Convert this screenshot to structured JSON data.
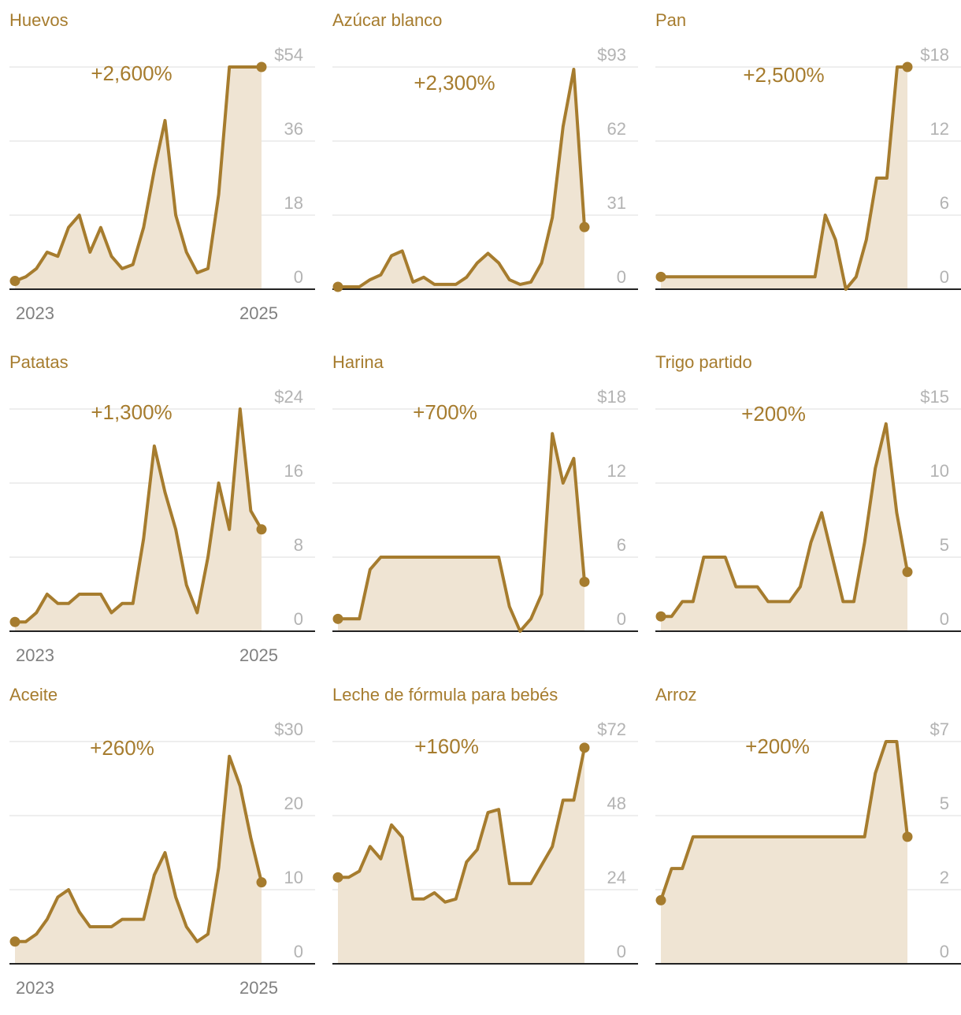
{
  "colors": {
    "accent": "#a67c2e",
    "area": "#efe4d3",
    "grid": "#dcdcdc",
    "axis": "#222222",
    "tick": "#b3b3b3",
    "xtick": "#808080"
  },
  "chart_data": [
    {
      "type": "area",
      "title": "Huevos",
      "change_label": "+2,600%",
      "y_ticks": [
        "$54",
        "36",
        "18",
        "0"
      ],
      "ylim": [
        0,
        54
      ],
      "x_labels": [
        "2023",
        "2025"
      ],
      "values": [
        2,
        3,
        5,
        9,
        8,
        15,
        18,
        9,
        15,
        8,
        5,
        6,
        15,
        29,
        41,
        18,
        9,
        4,
        5,
        23,
        54,
        54,
        54,
        54
      ]
    },
    {
      "type": "area",
      "title": "Azúcar blanco",
      "change_label": "+2,300%",
      "y_ticks": [
        "$93",
        "62",
        "31",
        "0"
      ],
      "ylim": [
        0,
        93
      ],
      "x_labels": [],
      "values": [
        1,
        1,
        1,
        4,
        6,
        14,
        16,
        3,
        5,
        2,
        2,
        2,
        5,
        11,
        15,
        11,
        4,
        2,
        3,
        11,
        30,
        68,
        92,
        26
      ]
    },
    {
      "type": "area",
      "title": "Pan",
      "change_label": "+2,500%",
      "y_ticks": [
        "$18",
        "12",
        "6",
        "0"
      ],
      "ylim": [
        0,
        18
      ],
      "x_labels": [],
      "values": [
        1,
        1,
        1,
        1,
        1,
        1,
        1,
        1,
        1,
        1,
        1,
        1,
        1,
        1,
        1,
        1,
        6,
        4,
        0,
        1,
        4,
        9,
        9,
        18,
        18
      ]
    },
    {
      "type": "area",
      "title": "Patatas",
      "change_label": "+1,300%",
      "y_ticks": [
        "$24",
        "16",
        "8",
        "0"
      ],
      "ylim": [
        0,
        24
      ],
      "x_labels": [
        "2023",
        "2025"
      ],
      "values": [
        1,
        1,
        2,
        4,
        3,
        3,
        4,
        4,
        4,
        2,
        3,
        3,
        10,
        20,
        15,
        11,
        5,
        2,
        8,
        16,
        11,
        24,
        13,
        11
      ]
    },
    {
      "type": "area",
      "title": "Harina",
      "change_label": "+700%",
      "y_ticks": [
        "$18",
        "12",
        "6",
        "0"
      ],
      "ylim": [
        0,
        18
      ],
      "x_labels": [],
      "values": [
        1,
        1,
        1,
        5,
        6,
        6,
        6,
        6,
        6,
        6,
        6,
        6,
        6,
        6,
        6,
        6,
        2,
        0,
        1,
        3,
        16,
        12,
        14,
        4
      ]
    },
    {
      "type": "area",
      "title": "Trigo partido",
      "change_label": "+200%",
      "y_ticks": [
        "$15",
        "10",
        "5",
        "0"
      ],
      "ylim": [
        0,
        15
      ],
      "x_labels": [],
      "values": [
        1,
        1,
        2,
        2,
        5,
        5,
        5,
        3,
        3,
        3,
        2,
        2,
        2,
        3,
        6,
        8,
        5,
        2,
        2,
        6,
        11,
        14,
        8,
        4
      ]
    },
    {
      "type": "area",
      "title": "Aceite",
      "change_label": "+260%",
      "y_ticks": [
        "$30",
        "20",
        "10",
        "0"
      ],
      "ylim": [
        0,
        30
      ],
      "x_labels": [
        "2023",
        "2025"
      ],
      "values": [
        3,
        3,
        4,
        6,
        9,
        10,
        7,
        5,
        5,
        5,
        6,
        6,
        6,
        12,
        15,
        9,
        5,
        3,
        4,
        13,
        28,
        24,
        17,
        11
      ]
    },
    {
      "type": "area",
      "title": "Leche de fórmula para bebés",
      "change_label": "+160%",
      "y_ticks": [
        "$72",
        "48",
        "24",
        "0"
      ],
      "ylim": [
        0,
        72
      ],
      "x_labels": [],
      "values": [
        28,
        28,
        30,
        38,
        34,
        45,
        41,
        21,
        21,
        23,
        20,
        21,
        33,
        37,
        49,
        50,
        26,
        26,
        26,
        32,
        38,
        53,
        53,
        70
      ]
    },
    {
      "type": "area",
      "title": "Arroz",
      "change_label": "+200%",
      "y_ticks": [
        "$7",
        "5",
        "2",
        "0"
      ],
      "ylim": [
        0,
        7
      ],
      "x_labels": [],
      "values": [
        2,
        3,
        3,
        4,
        4,
        4,
        4,
        4,
        4,
        4,
        4,
        4,
        4,
        4,
        4,
        4,
        4,
        4,
        4,
        4,
        6,
        7,
        7,
        4
      ]
    }
  ]
}
